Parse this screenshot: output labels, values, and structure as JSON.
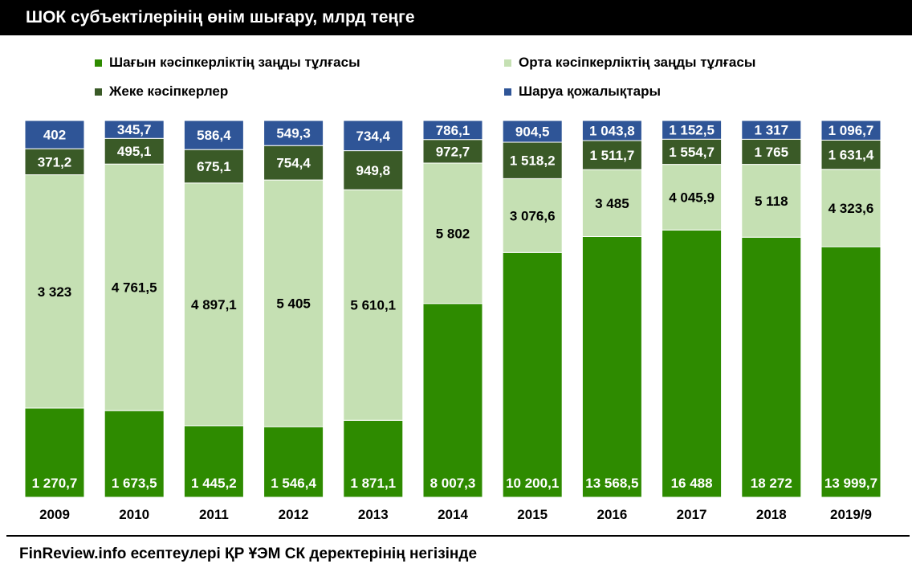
{
  "title": "ШОК субъектілерінің өнім шығару, млрд теңге",
  "footer": "FinReview.info есептеулері ҚР ҰЭМ СК деректерінің негізінде",
  "chart_data": {
    "type": "bar",
    "stacked": true,
    "normalized": true,
    "legend_position": "top",
    "categories": [
      "2009",
      "2010",
      "2011",
      "2012",
      "2013",
      "2014",
      "2015",
      "2016",
      "2017",
      "2018",
      "2019/9"
    ],
    "series": [
      {
        "name": "Шағын кәсіпкерліктің заңды тұлғасы",
        "color": "#2e8b00",
        "values": [
          1270.7,
          1673.5,
          1445.2,
          1546.4,
          1871.1,
          8007.3,
          10200.1,
          13568.5,
          16488,
          18272,
          13999.7
        ],
        "labels": [
          "1 270,7",
          "1 673,5",
          "1 445,2",
          "1 546,4",
          "1 871,1",
          "8 007,3",
          "10 200,1",
          "13 568,5",
          "16 488",
          "18 272",
          "13 999,7"
        ]
      },
      {
        "name": "Орта кәсіпкерліктің заңды тұлғасы",
        "color": "#c5e0b3",
        "values": [
          3323,
          4761.5,
          4897.1,
          5405,
          5610.1,
          5802,
          3076.6,
          3485,
          4045.9,
          5118,
          4323.6
        ],
        "labels": [
          "3 323",
          "4 761,5",
          "4 897,1",
          "5 405",
          "5 610,1",
          "5 802",
          "3 076,6",
          "3 485",
          "4 045,9",
          "5 118",
          "4 323,6"
        ]
      },
      {
        "name": "Жеке кәсіпкерлер",
        "color": "#3a5a27",
        "values": [
          371.2,
          495.1,
          675.1,
          754.4,
          949.8,
          972.7,
          1518.2,
          1511.7,
          1554.7,
          1765,
          1631.4
        ],
        "labels": [
          "371,2",
          "495,1",
          "675,1",
          "754,4",
          "949,8",
          "972,7",
          "1 518,2",
          "1 511,7",
          "1 554,7",
          "1 765",
          "1 631,4"
        ]
      },
      {
        "name": "Шаруа қожалықтары",
        "color": "#2f5597",
        "values": [
          402,
          345.7,
          586.4,
          549.3,
          734.4,
          786.1,
          904.5,
          1043.8,
          1152.5,
          1317,
          1096.7
        ],
        "labels": [
          "402",
          "345,7",
          "586,4",
          "549,3",
          "734,4",
          "786,1",
          "904,5",
          "1 043,8",
          "1 152,5",
          "1 317",
          "1 096,7"
        ]
      }
    ]
  }
}
